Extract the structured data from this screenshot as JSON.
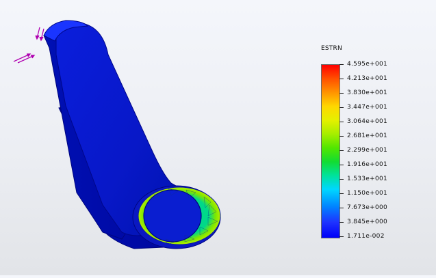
{
  "legend": {
    "title": "ESTRN",
    "ticks": [
      "4.595e+001",
      "4.213e+001",
      "3.830e+001",
      "3.447e+001",
      "3.064e+001",
      "2.681e+001",
      "2.299e+001",
      "1.916e+001",
      "1.533e+001",
      "1.150e+001",
      "7.673e+000",
      "3.845e+000",
      "1.711e-002"
    ]
  },
  "colors": {
    "part_base": "#0010c8",
    "part_edge": "#000090",
    "arrow": "#b000b0",
    "hot_green": "#3ce080",
    "hot_yellow": "#c8ee00"
  }
}
